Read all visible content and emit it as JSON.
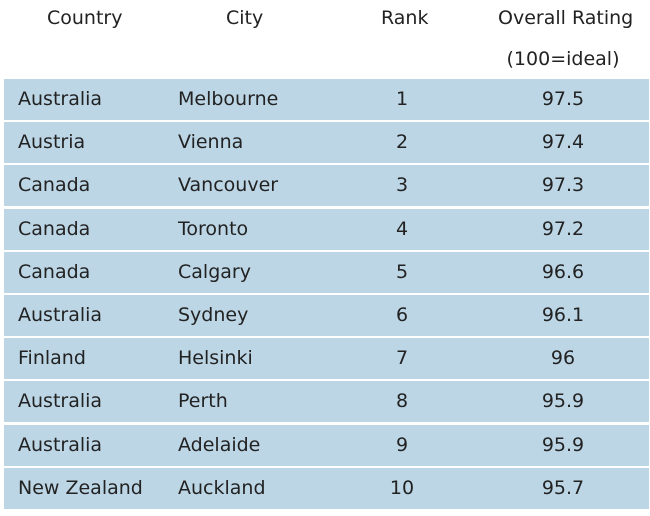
{
  "chart_data": {
    "type": "table",
    "columns": [
      "Country",
      "City",
      "Rank",
      "Overall Rating",
      "(100=ideal)"
    ],
    "rows": [
      {
        "country": "Australia",
        "city": "Melbourne",
        "rank": "1",
        "rating": "97.5"
      },
      {
        "country": "Austria",
        "city": "Vienna",
        "rank": "2",
        "rating": "97.4"
      },
      {
        "country": "Canada",
        "city": "Vancouver",
        "rank": "3",
        "rating": "97.3"
      },
      {
        "country": "Canada",
        "city": "Toronto",
        "rank": "4",
        "rating": "97.2"
      },
      {
        "country": "Canada",
        "city": "Calgary",
        "rank": "5",
        "rating": "96.6"
      },
      {
        "country": "Australia",
        "city": "Sydney",
        "rank": "6",
        "rating": "96.1"
      },
      {
        "country": "Finland",
        "city": "Helsinki",
        "rank": "7",
        "rating": "96"
      },
      {
        "country": "Australia",
        "city": "Perth",
        "rank": "8",
        "rating": "95.9"
      },
      {
        "country": "Australia",
        "city": "Adelaide",
        "rank": "9",
        "rating": "95.9"
      },
      {
        "country": "New Zealand",
        "city": "Auckland",
        "rank": "10",
        "rating": "95.7"
      }
    ],
    "row_color": "#bcd6e6"
  }
}
